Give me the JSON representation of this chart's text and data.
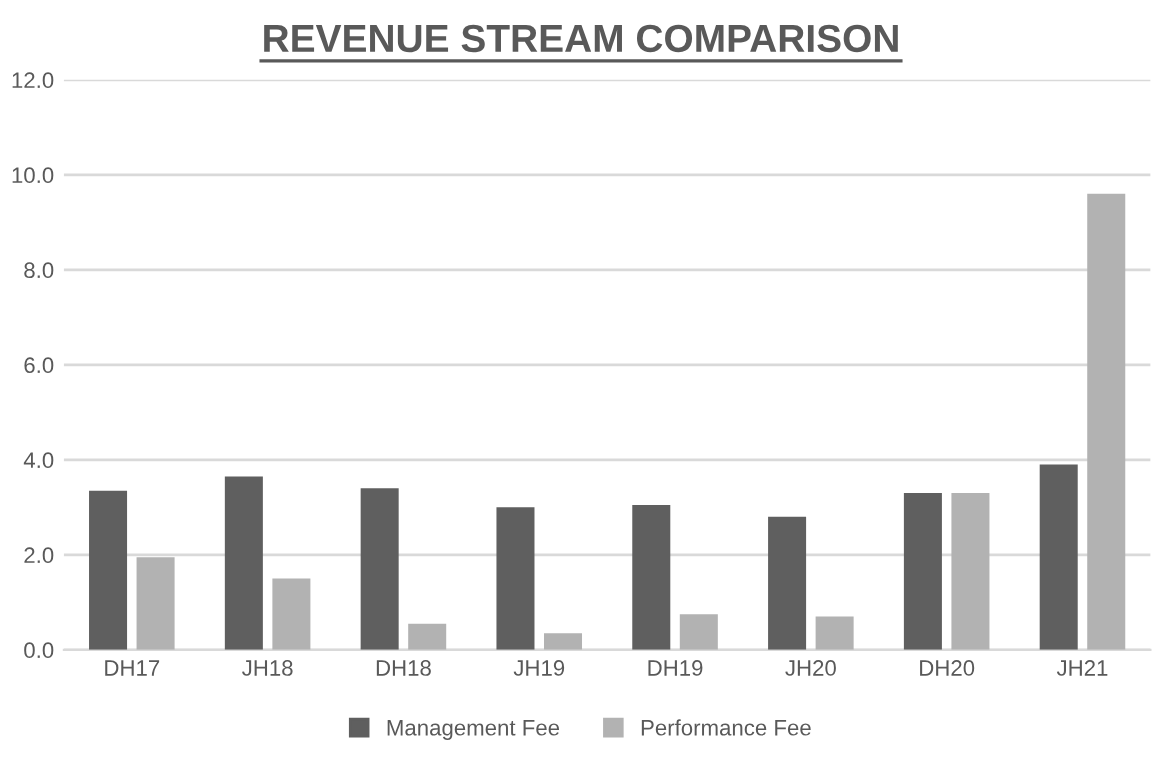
{
  "chart_data": {
    "type": "bar",
    "title": "REVENUE STREAM COMPARISON",
    "categories": [
      "DH17",
      "JH18",
      "DH18",
      "JH19",
      "DH19",
      "JH20",
      "DH20",
      "JH21"
    ],
    "series": [
      {
        "name": "Management Fee",
        "color": "#5f5f5f",
        "values": [
          3.35,
          3.65,
          3.4,
          3.0,
          3.05,
          2.8,
          3.3,
          3.9
        ]
      },
      {
        "name": "Performance Fee",
        "color": "#b2b2b2",
        "values": [
          1.95,
          1.5,
          0.55,
          0.35,
          0.75,
          0.7,
          3.3,
          9.6
        ]
      }
    ],
    "ylim": [
      0,
      12
    ],
    "yticks": [
      {
        "value": 0,
        "label": "0.0"
      },
      {
        "value": 2,
        "label": "2.0"
      },
      {
        "value": 4,
        "label": "4.0"
      },
      {
        "value": 6,
        "label": "6.0"
      },
      {
        "value": 8,
        "label": "8.0"
      },
      {
        "value": 10,
        "label": "10.0"
      },
      {
        "value": 12,
        "label": "12.0"
      }
    ],
    "grid": "y",
    "legend": "bottom"
  }
}
